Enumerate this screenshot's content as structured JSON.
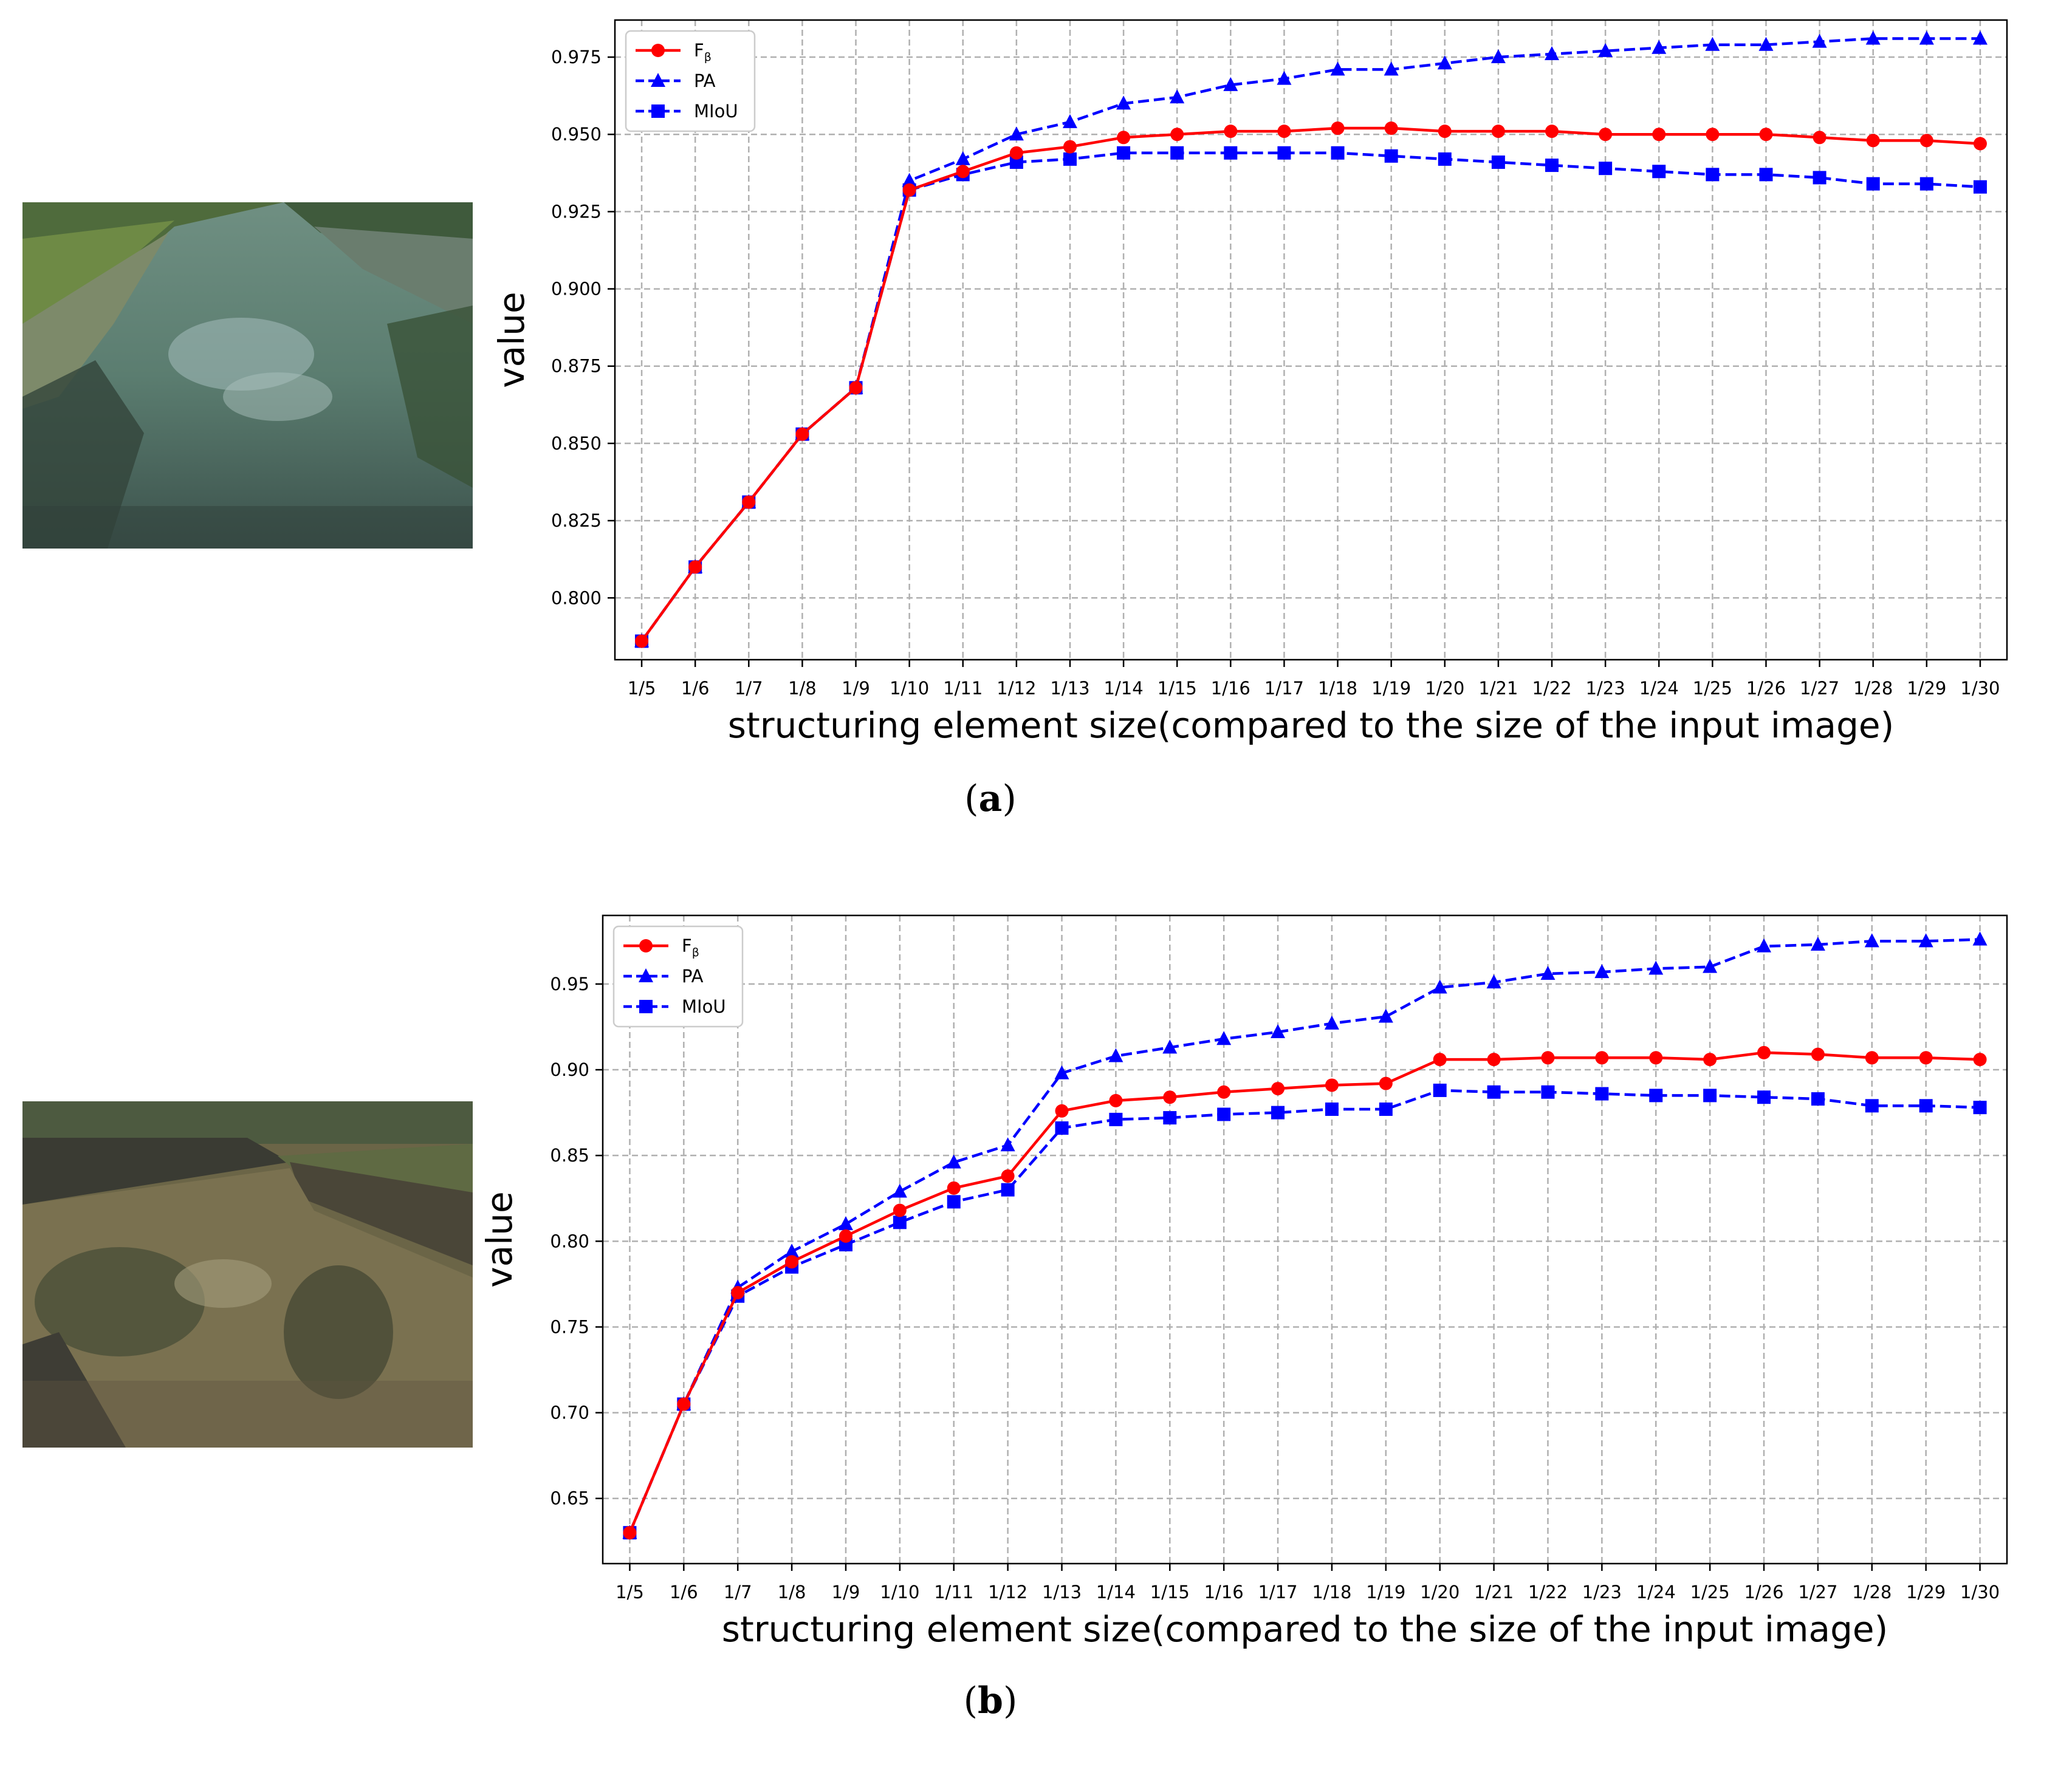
{
  "panels": [
    {
      "caption_letter": "a",
      "photo_name": "river-photo-a",
      "chart_data": {
        "type": "line",
        "categories": [
          "1/5",
          "1/6",
          "1/7",
          "1/8",
          "1/9",
          "1/10",
          "1/11",
          "1/12",
          "1/13",
          "1/14",
          "1/15",
          "1/16",
          "1/17",
          "1/18",
          "1/19",
          "1/20",
          "1/21",
          "1/22",
          "1/23",
          "1/24",
          "1/25",
          "1/26",
          "1/27",
          "1/28",
          "1/29",
          "1/30"
        ],
        "xlabel": "structuring element size(compared to the size of the input image)",
        "ylabel": "value",
        "ylim": [
          0.78,
          0.987
        ],
        "yticks": [
          0.8,
          0.825,
          0.85,
          0.875,
          0.9,
          0.925,
          0.95,
          0.975
        ],
        "ytick_decimals": 3,
        "grid": true,
        "legend_position": "top-left",
        "series": [
          {
            "name": "F",
            "name_sub": "β",
            "color": "#ff0000",
            "marker": "circle",
            "dash": "solid",
            "values": [
              0.786,
              0.81,
              0.831,
              0.853,
              0.868,
              0.932,
              0.938,
              0.944,
              0.946,
              0.949,
              0.95,
              0.951,
              0.951,
              0.952,
              0.952,
              0.951,
              0.951,
              0.951,
              0.95,
              0.95,
              0.95,
              0.95,
              0.949,
              0.948,
              0.948,
              0.947
            ]
          },
          {
            "name": "PA",
            "name_sub": "",
            "color": "#0000ff",
            "marker": "triangle",
            "dash": "dashed",
            "values": [
              0.786,
              0.81,
              0.831,
              0.853,
              0.868,
              0.935,
              0.942,
              0.95,
              0.954,
              0.96,
              0.962,
              0.966,
              0.968,
              0.971,
              0.971,
              0.973,
              0.975,
              0.976,
              0.977,
              0.978,
              0.979,
              0.979,
              0.98,
              0.981,
              0.981,
              0.981
            ]
          },
          {
            "name": "MIoU",
            "name_sub": "",
            "color": "#0000ff",
            "marker": "square",
            "dash": "dashed",
            "values": [
              0.786,
              0.81,
              0.831,
              0.853,
              0.868,
              0.932,
              0.937,
              0.941,
              0.942,
              0.944,
              0.944,
              0.944,
              0.944,
              0.944,
              0.943,
              0.942,
              0.941,
              0.94,
              0.939,
              0.938,
              0.937,
              0.937,
              0.936,
              0.934,
              0.934,
              0.933
            ]
          }
        ]
      }
    },
    {
      "caption_letter": "b",
      "photo_name": "river-photo-b",
      "chart_data": {
        "type": "line",
        "categories": [
          "1/5",
          "1/6",
          "1/7",
          "1/8",
          "1/9",
          "1/10",
          "1/11",
          "1/12",
          "1/13",
          "1/14",
          "1/15",
          "1/16",
          "1/17",
          "1/18",
          "1/19",
          "1/20",
          "1/21",
          "1/22",
          "1/23",
          "1/24",
          "1/25",
          "1/26",
          "1/27",
          "1/28",
          "1/29",
          "1/30"
        ],
        "xlabel": "structuring element size(compared to the size of the input image)",
        "ylabel": "value",
        "ylim": [
          0.612,
          0.99
        ],
        "yticks": [
          0.65,
          0.7,
          0.75,
          0.8,
          0.85,
          0.9,
          0.95
        ],
        "ytick_decimals": 2,
        "grid": true,
        "legend_position": "top-left",
        "series": [
          {
            "name": "F",
            "name_sub": "β",
            "color": "#ff0000",
            "marker": "circle",
            "dash": "solid",
            "values": [
              0.63,
              0.705,
              0.77,
              0.788,
              0.803,
              0.818,
              0.831,
              0.838,
              0.876,
              0.882,
              0.884,
              0.887,
              0.889,
              0.891,
              0.892,
              0.906,
              0.906,
              0.907,
              0.907,
              0.907,
              0.906,
              0.91,
              0.909,
              0.907,
              0.907,
              0.906
            ]
          },
          {
            "name": "PA",
            "name_sub": "",
            "color": "#0000ff",
            "marker": "triangle",
            "dash": "dashed",
            "values": [
              0.63,
              0.705,
              0.773,
              0.794,
              0.81,
              0.829,
              0.846,
              0.856,
              0.898,
              0.908,
              0.913,
              0.918,
              0.922,
              0.927,
              0.931,
              0.948,
              0.951,
              0.956,
              0.957,
              0.959,
              0.96,
              0.972,
              0.973,
              0.975,
              0.975,
              0.976
            ]
          },
          {
            "name": "MIoU",
            "name_sub": "",
            "color": "#0000ff",
            "marker": "square",
            "dash": "dashed",
            "values": [
              0.63,
              0.705,
              0.768,
              0.785,
              0.798,
              0.811,
              0.823,
              0.83,
              0.866,
              0.871,
              0.872,
              0.874,
              0.875,
              0.877,
              0.877,
              0.888,
              0.887,
              0.887,
              0.886,
              0.885,
              0.885,
              0.884,
              0.883,
              0.879,
              0.879,
              0.878
            ]
          }
        ]
      }
    }
  ]
}
